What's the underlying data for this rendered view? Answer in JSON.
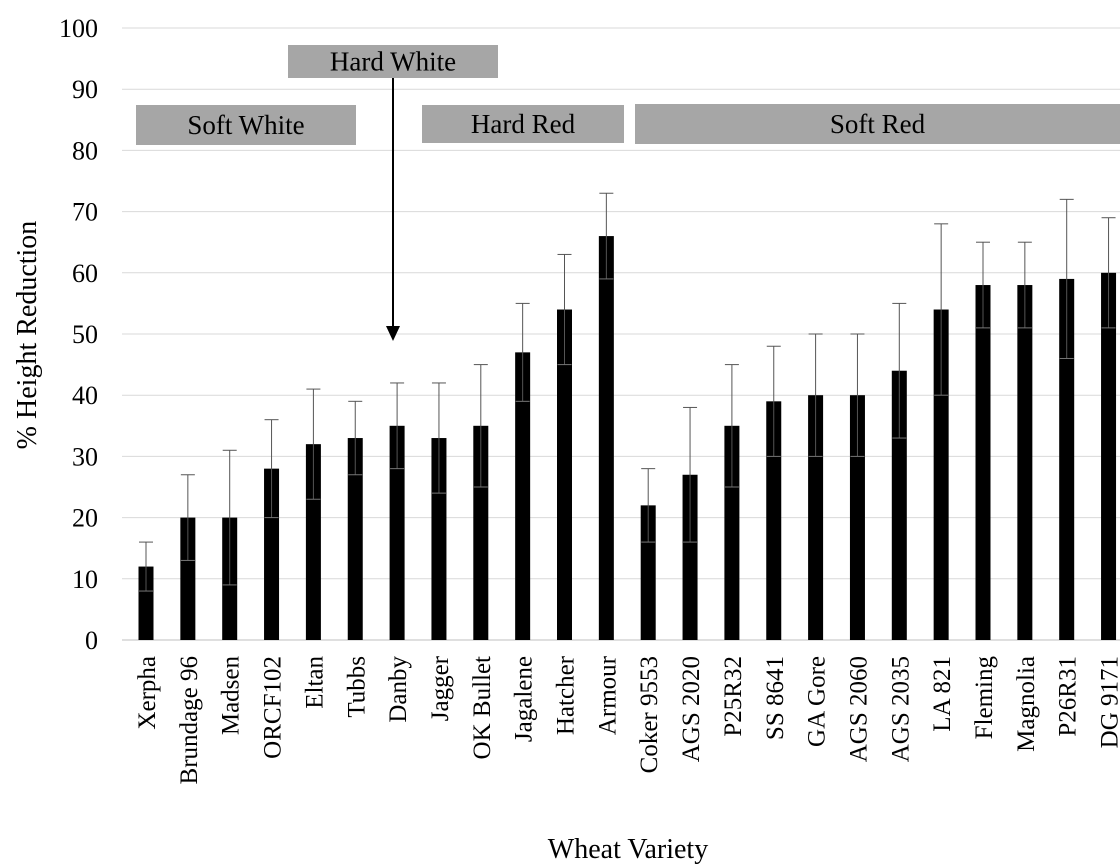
{
  "chart_data": {
    "type": "bar",
    "xlabel": "Wheat Variety",
    "ylabel": "% Height Reduction",
    "ylim": [
      0,
      100
    ],
    "yticks": [
      "0",
      "10",
      "20",
      "30",
      "40",
      "50",
      "60",
      "70",
      "80",
      "90",
      "100"
    ],
    "grid": true,
    "categories": [
      "Xerpha",
      "Brundage 96",
      "Madsen",
      "ORCF102",
      "Eltan",
      "Tubbs",
      "Danby",
      "Jagger",
      "OK Bullet",
      "Jagalene",
      "Hatcher",
      "Armour",
      "Coker 9553",
      "AGS 2020",
      "P25R32",
      "SS 8641",
      "GA Gore",
      "AGS 2060",
      "AGS 2035",
      "LA 821",
      "Fleming",
      "Magnolia",
      "P26R31",
      "DG 9171"
    ],
    "values": [
      12,
      20,
      20,
      28,
      32,
      33,
      35,
      33,
      35,
      47,
      54,
      66,
      22,
      27,
      35,
      39,
      40,
      40,
      44,
      54,
      58,
      58,
      59,
      60
    ],
    "error_plus": [
      4,
      7,
      11,
      8,
      9,
      6,
      7,
      9,
      10,
      8,
      9,
      7,
      6,
      11,
      10,
      9,
      10,
      10,
      11,
      14,
      7,
      7,
      13,
      9
    ],
    "error_minus": [
      4,
      7,
      11,
      8,
      9,
      6,
      7,
      9,
      10,
      8,
      9,
      7,
      6,
      11,
      10,
      9,
      10,
      10,
      11,
      14,
      7,
      7,
      13,
      9
    ],
    "bar_color": "#000000",
    "groups": [
      {
        "label": "Soft White"
      },
      {
        "label": "Hard White"
      },
      {
        "label": "Hard Red"
      },
      {
        "label": "Soft Red"
      }
    ],
    "group_box_color": "#a6a6a6"
  }
}
